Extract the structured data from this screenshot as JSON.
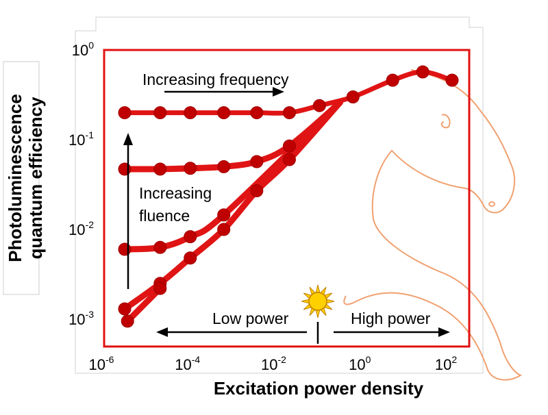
{
  "chart_data": {
    "type": "line",
    "xscale": "log",
    "yscale": "log",
    "xlabel": "Excitation power density",
    "ylabel_lines": [
      "Photoluminescence",
      "quantum efficiency"
    ],
    "xlim": [
      1e-06,
      300.0
    ],
    "ylim": [
      0.001,
      1
    ],
    "x_ticks": [
      {
        "base": "10",
        "exp": "-6"
      },
      {
        "base": "10",
        "exp": "-4"
      },
      {
        "base": "10",
        "exp": "-2"
      },
      {
        "base": "10",
        "exp": "0"
      },
      {
        "base": "10",
        "exp": "2"
      }
    ],
    "y_ticks": [
      {
        "base": "10",
        "exp": "0"
      },
      {
        "base": "10",
        "exp": "-1"
      },
      {
        "base": "10",
        "exp": "-2"
      },
      {
        "base": "10",
        "exp": "-3"
      }
    ],
    "series": [
      {
        "x": [
          3e-06,
          2e-05,
          0.0001,
          0.0006,
          0.0035,
          0.02,
          0.1,
          0.6,
          5,
          25,
          120
        ],
        "y": [
          0.2,
          0.2,
          0.2,
          0.2,
          0.2,
          0.2,
          0.24,
          0.3,
          0.46,
          0.57,
          0.46
        ]
      },
      {
        "x": [
          3e-06,
          2e-05,
          0.0001,
          0.0006,
          0.0035,
          0.02
        ],
        "y": [
          0.047,
          0.047,
          0.048,
          0.05,
          0.057,
          0.085
        ]
      },
      {
        "x": [
          3e-06,
          2e-05,
          0.0001,
          0.0006
        ],
        "y": [
          0.006,
          0.0063,
          0.0083,
          0.0145
        ]
      },
      {
        "x": [
          3e-06,
          2e-05,
          0.0001,
          0.0006,
          0.0035,
          0.02
        ],
        "y": [
          0.0013,
          0.0025,
          0.0048,
          0.01,
          0.027,
          0.06
        ]
      },
      {
        "x": [
          3.5e-06,
          2e-05
        ],
        "y": [
          0.00095,
          0.0022
        ]
      }
    ],
    "annotations": {
      "top_arrow": "Increasing frequency",
      "left_arrow_lines": [
        "Increasing",
        "fluence"
      ],
      "low": "Low power",
      "high": "High power"
    },
    "colors": {
      "frame": "#e01010",
      "curve": "#e01414",
      "marker": "#c00000",
      "horse": "#f0a070",
      "sun": "#ffd000"
    }
  }
}
